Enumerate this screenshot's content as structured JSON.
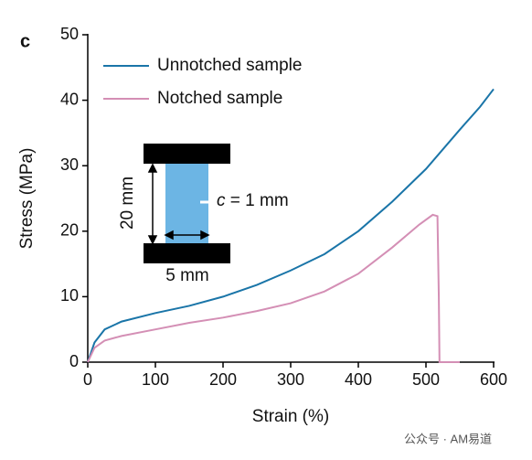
{
  "chart_data": {
    "type": "line",
    "panel_label": "c",
    "x_label": "Strain (%)",
    "y_label": "Stress (MPa)",
    "xlim": [
      0,
      600
    ],
    "xticks": [
      0,
      100,
      200,
      300,
      400,
      500,
      600
    ],
    "ylim": [
      0,
      50
    ],
    "yticks": [
      0,
      10,
      20,
      30,
      40,
      50
    ],
    "legend": "upper left",
    "series": [
      {
        "name": "Unnotched sample",
        "color": "#1a75a8",
        "x": [
          0,
          10,
          25,
          50,
          100,
          150,
          200,
          250,
          300,
          350,
          400,
          450,
          500,
          550,
          580,
          600
        ],
        "values": [
          0,
          3,
          5,
          6.2,
          7.5,
          8.6,
          10,
          11.8,
          14,
          16.5,
          20,
          24.5,
          29.5,
          35.5,
          39,
          41.7
        ]
      },
      {
        "name": "Notched sample",
        "color": "#d48fb5",
        "x": [
          0,
          10,
          25,
          50,
          100,
          150,
          200,
          250,
          300,
          350,
          400,
          450,
          490,
          510,
          517,
          519,
          520,
          550
        ],
        "values": [
          0,
          2.2,
          3.3,
          4,
          5,
          6,
          6.8,
          7.8,
          9,
          10.8,
          13.5,
          17.5,
          21,
          22.5,
          22.3,
          10,
          0,
          0
        ]
      }
    ],
    "inset": {
      "height_label": "20 mm",
      "width_label": "5 mm",
      "notch_symbol": "c",
      "notch_text": " = 1 mm"
    },
    "watermark": "公众号 · AM易道"
  }
}
